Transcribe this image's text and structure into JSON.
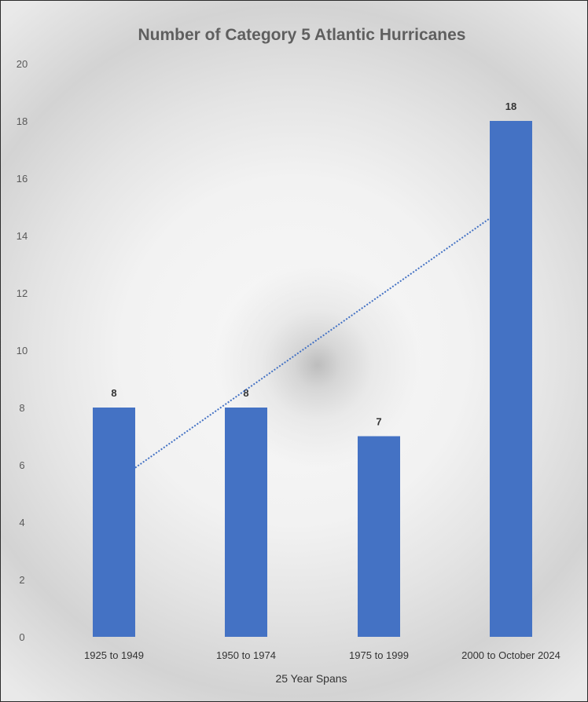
{
  "chart_data": {
    "type": "bar",
    "title": "Number of Category 5 Atlantic Hurricanes",
    "xlabel": "25 Year Spans",
    "ylabel": "",
    "categories": [
      "1925 to 1949",
      "1950 to 1974",
      "1975 to 1999",
      "2000 to October 2024"
    ],
    "values": [
      8,
      8,
      7,
      18
    ],
    "data_labels": [
      "8",
      "8",
      "7",
      "18"
    ],
    "ylim": [
      0,
      20
    ],
    "yticks": [
      "0",
      "2",
      "4",
      "6",
      "8",
      "10",
      "12",
      "14",
      "16",
      "18",
      "20"
    ],
    "grid": false,
    "legend": "none",
    "trendline": {
      "type": "linear",
      "style": "dotted"
    },
    "colors": {
      "bar": "#4472c4",
      "trendline": "#4472c4"
    }
  }
}
